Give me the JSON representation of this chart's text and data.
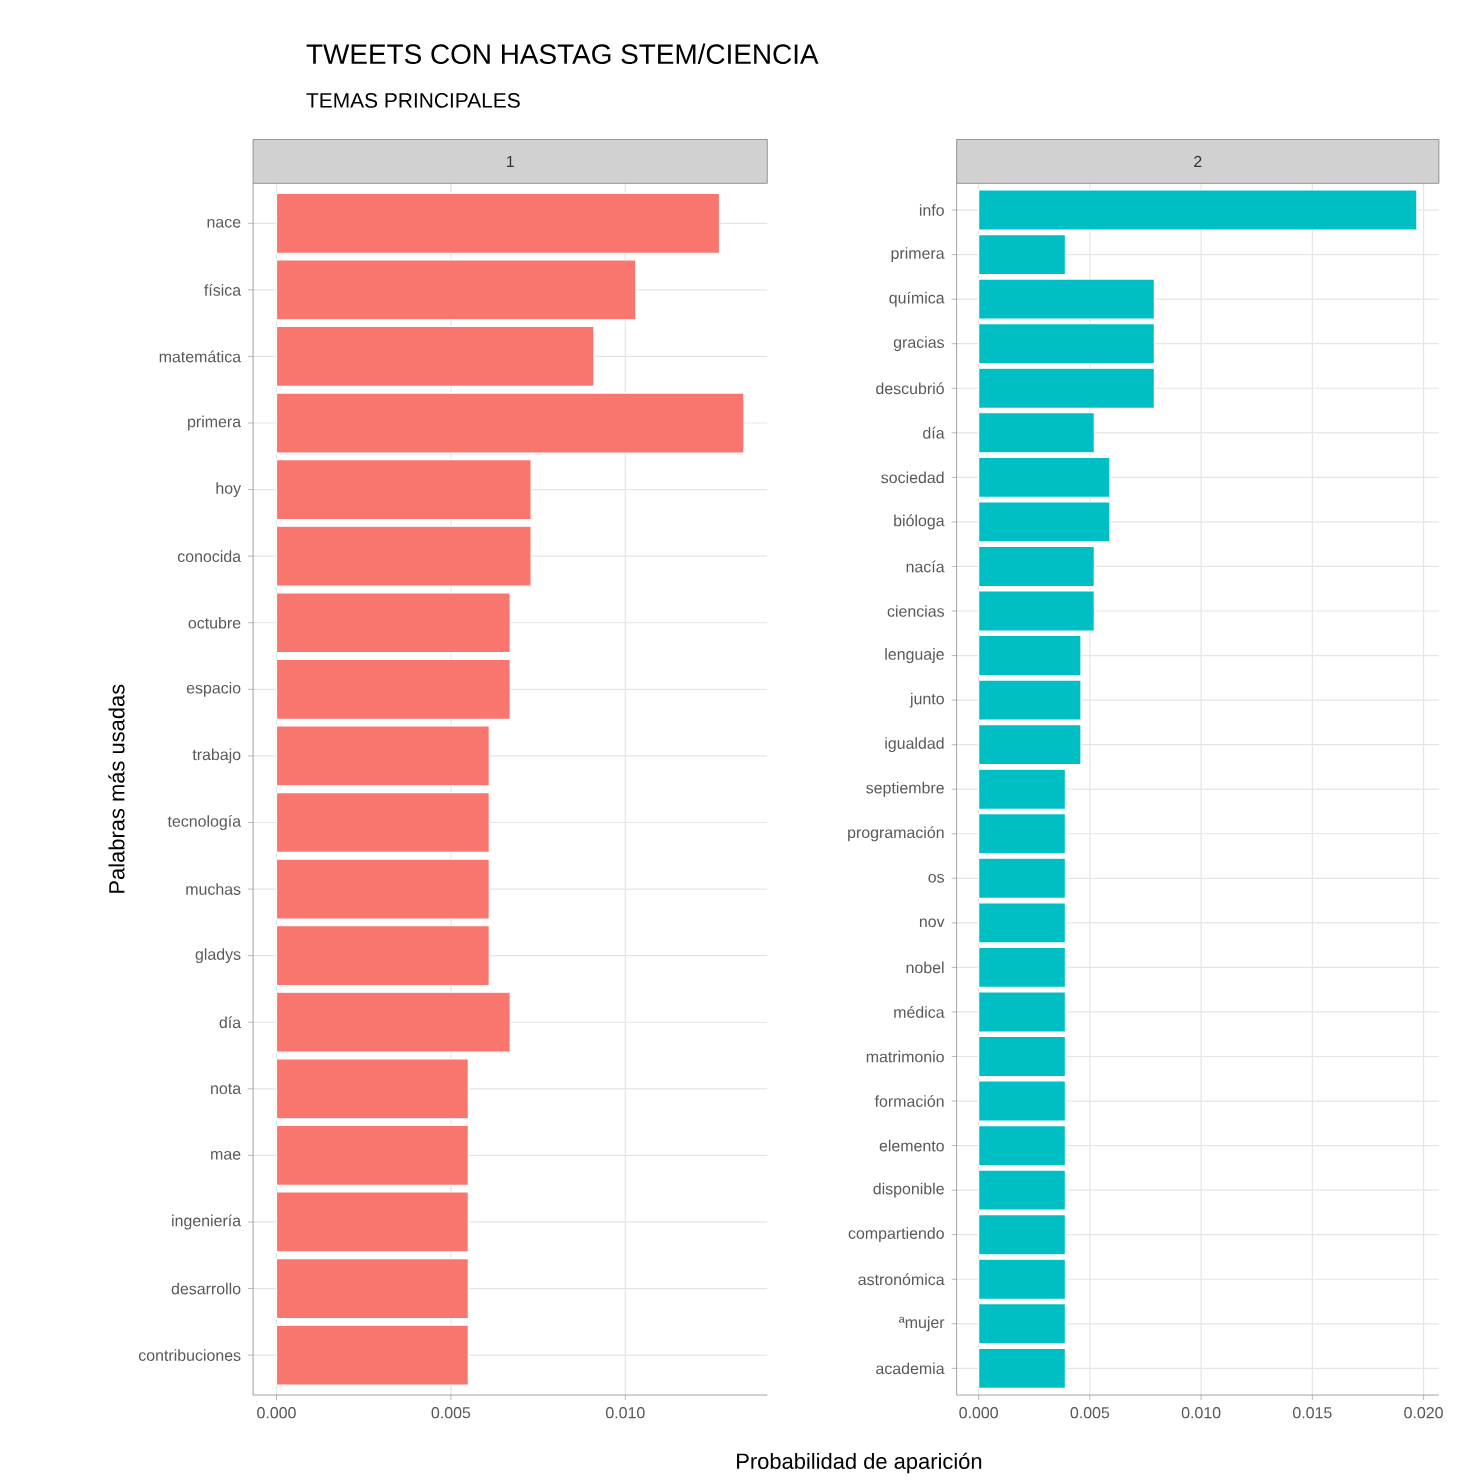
{
  "chart_data": [
    {
      "type": "bar",
      "orientation": "horizontal",
      "title": "TWEETS CON HASTAG STEM/CIENCIA",
      "subtitle": "TEMAS PRINCIPALES",
      "ylabel": "Palabras más usadas",
      "xlabel": "Probabilidad de aparición",
      "annotations": [
        "1"
      ],
      "categories": [
        "nace",
        "física",
        "matemática",
        "primera",
        "hoy",
        "conocida",
        "octubre",
        "espacio",
        "trabajo",
        "tecnología",
        "muchas",
        "gladys",
        "día",
        "nota",
        "mae",
        "ingeniería",
        "desarrollo",
        "contribuciones"
      ],
      "values": [
        0.0127,
        0.0103,
        0.0091,
        0.0134,
        0.0073,
        0.0073,
        0.0067,
        0.0067,
        0.0061,
        0.0061,
        0.0061,
        0.0061,
        0.0067,
        0.0055,
        0.0055,
        0.0055,
        0.0055,
        0.0055
      ],
      "color": "#f8766d",
      "xlim": [
        -0.00067,
        0.01407
      ],
      "xticks": [
        {
          "value": 0,
          "label": "0.000"
        },
        {
          "value": 0.005,
          "label": "0.005"
        },
        {
          "value": 0.01,
          "label": "0.010"
        }
      ],
      "grid": true
    },
    {
      "type": "bar",
      "orientation": "horizontal",
      "annotations": [
        "2"
      ],
      "categories": [
        "info",
        "primera",
        "química",
        "gracias",
        "descubrió",
        "día",
        "sociedad",
        "bióloga",
        "nacía",
        "ciencias",
        "lenguaje",
        "junto",
        "igualdad",
        "septiembre",
        "programación",
        "os",
        "nov",
        "nobel",
        "médica",
        "matrimonio",
        "formación",
        "elemento",
        "disponible",
        "compartiendo",
        "astronómica",
        "ªmujer",
        "academia"
      ],
      "values": [
        0.0197,
        0.0039,
        0.0079,
        0.0079,
        0.0079,
        0.0052,
        0.0059,
        0.0059,
        0.0052,
        0.0052,
        0.0046,
        0.0046,
        0.0046,
        0.0039,
        0.0039,
        0.0039,
        0.0039,
        0.0039,
        0.0039,
        0.0039,
        0.0039,
        0.0039,
        0.0039,
        0.0039,
        0.0039,
        0.0039,
        0.0039
      ],
      "color": "#00bfc4",
      "xlim": [
        -0.00099,
        0.02069
      ],
      "xticks": [
        {
          "value": 0,
          "label": "0.000"
        },
        {
          "value": 0.005,
          "label": "0.005"
        },
        {
          "value": 0.01,
          "label": "0.010"
        },
        {
          "value": 0.015,
          "label": "0.015"
        },
        {
          "value": 0.02,
          "label": "0.020"
        }
      ],
      "grid": true
    }
  ]
}
